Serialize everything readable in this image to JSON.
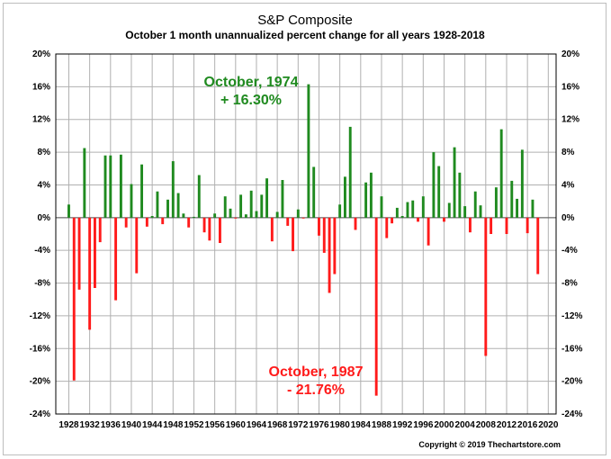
{
  "chart_data": {
    "type": "bar",
    "title": "S&P Composite",
    "subtitle": "October 1 month unannualized percent change for all years 1928-2018",
    "xlabel": "",
    "ylabel": "",
    "x_ticks": [
      "1928",
      "1932",
      "1936",
      "1940",
      "1944",
      "1948",
      "1952",
      "1956",
      "1960",
      "1964",
      "1968",
      "1972",
      "1976",
      "1980",
      "1984",
      "1988",
      "1992",
      "1996",
      "2000",
      "2004",
      "2008",
      "2012",
      "2016",
      "2020"
    ],
    "y_ticks": [
      "20%",
      "16%",
      "12%",
      "8%",
      "4%",
      "0%",
      "-4%",
      "-8%",
      "-12%",
      "-16%",
      "-20%",
      "-24%"
    ],
    "xlim": [
      1925.5,
      2021.5
    ],
    "ylim": [
      -24,
      20
    ],
    "grid": true,
    "colors": {
      "positive": "#1f8a1f",
      "negative": "#ff1a1a"
    },
    "years": [
      1928,
      1929,
      1930,
      1931,
      1932,
      1933,
      1934,
      1935,
      1936,
      1937,
      1938,
      1939,
      1940,
      1941,
      1942,
      1943,
      1944,
      1945,
      1946,
      1947,
      1948,
      1949,
      1950,
      1951,
      1952,
      1953,
      1954,
      1955,
      1956,
      1957,
      1958,
      1959,
      1960,
      1961,
      1962,
      1963,
      1964,
      1965,
      1966,
      1967,
      1968,
      1969,
      1970,
      1971,
      1972,
      1973,
      1974,
      1975,
      1976,
      1977,
      1978,
      1979,
      1980,
      1981,
      1982,
      1983,
      1984,
      1985,
      1986,
      1987,
      1988,
      1989,
      1990,
      1991,
      1992,
      1993,
      1994,
      1995,
      1996,
      1997,
      1998,
      1999,
      2000,
      2001,
      2002,
      2003,
      2004,
      2005,
      2006,
      2007,
      2008,
      2009,
      2010,
      2011,
      2012,
      2013,
      2014,
      2015,
      2016,
      2017,
      2018
    ],
    "values": [
      1.6,
      -19.9,
      -8.8,
      8.5,
      -13.7,
      -8.6,
      -3.0,
      7.6,
      7.6,
      -10.1,
      7.7,
      -1.2,
      4.1,
      -6.8,
      6.5,
      -1.1,
      0.2,
      3.2,
      -0.8,
      2.2,
      6.9,
      3.0,
      0.5,
      -1.2,
      0.1,
      5.2,
      -1.8,
      -2.8,
      0.5,
      -3.1,
      2.6,
      1.1,
      -0.1,
      2.8,
      0.4,
      3.3,
      0.8,
      2.8,
      4.8,
      -2.9,
      0.7,
      4.6,
      -1.0,
      -4.1,
      1.0,
      -0.1,
      16.3,
      6.2,
      -2.2,
      -4.3,
      -9.2,
      -6.9,
      1.6,
      5.0,
      11.1,
      -1.5,
      0.0,
      4.3,
      5.5,
      -21.76,
      2.6,
      -2.5,
      -0.7,
      1.2,
      0.2,
      1.9,
      2.1,
      -0.5,
      2.6,
      -3.4,
      8.0,
      6.3,
      -0.5,
      1.8,
      8.6,
      5.5,
      1.4,
      -1.8,
      3.2,
      1.5,
      -16.9,
      -2.0,
      3.7,
      10.8,
      -2.0,
      4.5,
      2.3,
      8.3,
      -1.9,
      2.2,
      -6.9
    ],
    "annotations": [
      {
        "text_line1": "October, 1974",
        "text_line2": "+ 16.30%",
        "color": "positive"
      },
      {
        "text_line1": "October, 1987",
        "text_line2": "- 21.76%",
        "color": "negative"
      }
    ]
  },
  "footer": {
    "copyright": "Copyright © 2019 Thechartstore.com"
  }
}
